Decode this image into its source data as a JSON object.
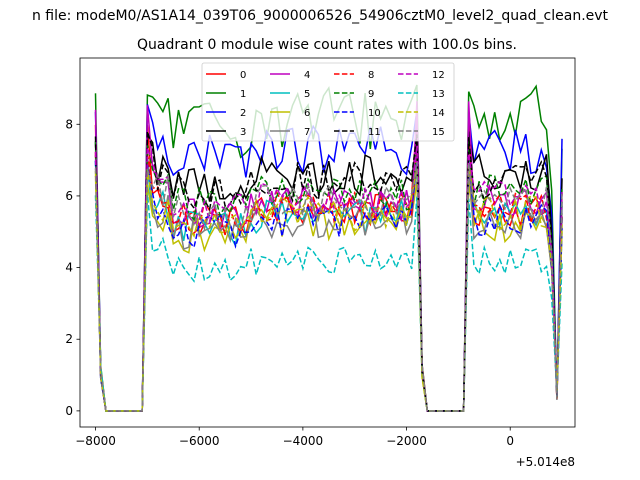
{
  "chart_data": {
    "type": "line",
    "suptitle": "n file: modeM0/AS1A14_039T06_9000006526_54906cztM0_level2_quad_clean.evt",
    "title": "Quadrant 0 module wise count rates with 100.0s bins.",
    "xlabel": "",
    "ylabel": "",
    "offset_text": "+5.014e8",
    "xlim": [
      -8300,
      1250
    ],
    "ylim": [
      -0.45,
      9.85
    ],
    "x_ticks": [
      -8000,
      -6000,
      -4000,
      -2000,
      0
    ],
    "x_tick_labels": [
      "−8000",
      "−6000",
      "−4000",
      "−2000",
      "0"
    ],
    "y_ticks": [
      0,
      2,
      4,
      6,
      8
    ],
    "y_tick_labels": [
      "0",
      "2",
      "4",
      "6",
      "8"
    ],
    "x_start": -8000,
    "x_step": 100,
    "count": 91,
    "series": [
      {
        "name": "0",
        "color": "#ff0000",
        "style": "solid",
        "plateau": 5.6,
        "jitter": 0.45,
        "peak": 8.2
      },
      {
        "name": "1",
        "color": "#008000",
        "style": "solid",
        "plateau": 8.2,
        "jitter": 0.9,
        "peak": 9.1
      },
      {
        "name": "2",
        "color": "#0000ff",
        "style": "solid",
        "plateau": 7.3,
        "jitter": 0.7,
        "peak": 8.6
      },
      {
        "name": "3",
        "color": "#000000",
        "style": "solid",
        "plateau": 6.6,
        "jitter": 0.6,
        "peak": 7.8
      },
      {
        "name": "4",
        "color": "#bf00bf",
        "style": "solid",
        "plateau": 5.8,
        "jitter": 0.5,
        "peak": 8.7
      },
      {
        "name": "5",
        "color": "#00bfbf",
        "style": "solid",
        "plateau": 5.4,
        "jitter": 0.5,
        "peak": 7.0
      },
      {
        "name": "6",
        "color": "#bfbf00",
        "style": "solid",
        "plateau": 5.2,
        "jitter": 0.5,
        "peak": 6.6
      },
      {
        "name": "7",
        "color": "#808080",
        "style": "solid",
        "plateau": 5.3,
        "jitter": 0.5,
        "peak": 7.2
      },
      {
        "name": "8",
        "color": "#ff0000",
        "style": "dashed",
        "plateau": 5.7,
        "jitter": 0.45,
        "peak": 7.3
      },
      {
        "name": "9",
        "color": "#008000",
        "style": "dashed",
        "plateau": 6.1,
        "jitter": 0.5,
        "peak": 7.6
      },
      {
        "name": "10",
        "color": "#0000ff",
        "style": "dashed",
        "plateau": 5.3,
        "jitter": 0.5,
        "peak": 7.1
      },
      {
        "name": "11",
        "color": "#000000",
        "style": "dashed",
        "plateau": 6.4,
        "jitter": 0.55,
        "peak": 7.8
      },
      {
        "name": "12",
        "color": "#bf00bf",
        "style": "dashed",
        "plateau": 5.9,
        "jitter": 0.5,
        "peak": 7.4
      },
      {
        "name": "13",
        "color": "#00bfbf",
        "style": "dashed",
        "plateau": 4.2,
        "jitter": 0.4,
        "peak": 6.2
      },
      {
        "name": "14",
        "color": "#bfbf00",
        "style": "dashed",
        "plateau": 5.5,
        "jitter": 0.5,
        "peak": 6.9
      },
      {
        "name": "15",
        "color": "#808080",
        "style": "dashed",
        "plateau": 5.8,
        "jitter": 0.5,
        "peak": 7.0
      }
    ],
    "gaps": [
      {
        "from": -7800,
        "to": -7100,
        "value": 0
      },
      {
        "from": -1600,
        "to": -900,
        "value": 0
      }
    ],
    "edges": [
      -8000,
      -7900,
      -7000,
      -1800,
      -1700,
      -800,
      800,
      900
    ],
    "legend": {
      "placement": "top-center",
      "columns": 4
    }
  }
}
